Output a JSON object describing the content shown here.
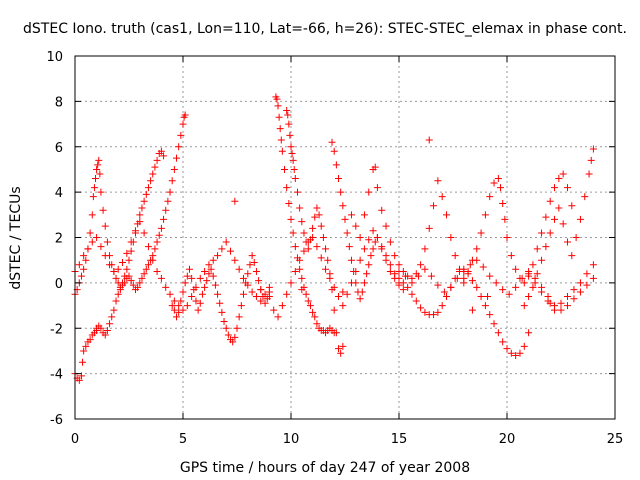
{
  "chart_data": {
    "type": "scatter",
    "title": "dSTEC Iono. truth (cas1, Lon=110, Lat=-66, h=26): STEC-STEC_elemax in phase cont.",
    "xlabel": "GPS time / hours of day 247 of year 2008",
    "ylabel": "dSTEC  / TECUs",
    "xlim": [
      0,
      25
    ],
    "ylim": [
      -6,
      10
    ],
    "x_ticks": [
      0,
      5,
      10,
      15,
      20,
      25
    ],
    "y_ticks": [
      -6,
      -4,
      -2,
      0,
      2,
      4,
      6,
      8,
      10
    ],
    "x_tick_labels": [
      "0",
      "5",
      "10",
      "15",
      "20",
      "25"
    ],
    "y_tick_labels": [
      "-6",
      "-4",
      "-2",
      "0",
      "2",
      "4",
      "6",
      "8",
      "10"
    ],
    "grid": true,
    "marker": "plus",
    "series_color": "#ff0000",
    "series": [
      {
        "x": [
          0.0,
          0.1,
          0.2,
          0.3,
          0.35,
          0.4,
          0.5,
          0.6,
          0.7,
          0.8,
          0.9,
          1.0,
          1.0,
          1.1,
          1.2,
          1.3,
          1.4,
          1.5,
          1.6,
          1.7,
          1.8,
          1.9,
          2.0,
          2.1,
          2.2,
          2.3,
          2.4,
          2.5,
          2.6,
          2.7,
          2.8,
          2.9,
          3.0,
          3.1,
          3.2,
          3.3,
          3.4,
          3.5,
          3.6,
          3.7,
          3.8,
          3.9,
          4.0,
          4.1,
          4.2,
          4.3,
          4.4,
          4.5,
          4.6,
          4.7,
          4.8,
          4.9,
          5.0,
          5.05,
          5.1
        ],
        "y": [
          -4.0,
          -4.2,
          -4.3,
          -4.1,
          -3.5,
          -3.0,
          -2.8,
          -2.6,
          -2.5,
          -2.3,
          -2.2,
          -2.1,
          -2.0,
          -1.9,
          -2.0,
          -2.2,
          -2.3,
          -2.1,
          -1.8,
          -1.5,
          -1.2,
          -0.8,
          -0.5,
          -0.3,
          -0.1,
          0.0,
          0.2,
          0.3,
          0.1,
          -0.1,
          -0.3,
          -0.2,
          0.0,
          0.2,
          0.4,
          0.6,
          0.8,
          1.0,
          1.2,
          1.5,
          1.8,
          2.1,
          2.4,
          2.8,
          3.2,
          3.6,
          4.0,
          4.5,
          5.0,
          5.5,
          6.0,
          6.5,
          7.0,
          7.3,
          7.4
        ]
      },
      {
        "x": [
          0.0,
          0.1,
          0.2,
          0.3,
          0.4,
          0.5,
          0.6,
          0.7,
          0.8,
          0.85,
          0.9,
          0.95,
          1.0,
          1.05,
          1.1,
          1.15,
          1.2,
          1.3,
          1.4,
          1.5,
          1.6,
          1.7,
          1.8,
          1.9,
          2.0,
          2.1,
          2.2,
          2.3,
          2.4,
          2.5,
          2.6,
          2.7,
          2.8,
          2.9,
          3.0,
          3.1,
          3.2,
          3.3,
          3.4,
          3.5,
          3.6,
          3.7,
          3.8,
          3.9,
          4.0,
          4.1
        ],
        "y": [
          -0.5,
          -0.3,
          0.0,
          0.3,
          0.6,
          1.0,
          1.5,
          2.2,
          3.0,
          3.8,
          4.2,
          4.6,
          5.0,
          5.2,
          5.4,
          4.8,
          4.0,
          3.2,
          2.5,
          1.8,
          1.2,
          0.8,
          0.5,
          0.2,
          0.0,
          -0.2,
          0.0,
          0.3,
          0.6,
          1.0,
          1.4,
          1.8,
          2.2,
          2.6,
          3.0,
          3.3,
          3.6,
          3.9,
          4.2,
          4.5,
          4.8,
          5.1,
          5.4,
          5.7,
          5.8,
          5.6
        ]
      },
      {
        "x": [
          0.0,
          0.2,
          0.4,
          0.6,
          0.8,
          1.0,
          1.2,
          1.4,
          1.6,
          1.8,
          2.0,
          2.2,
          2.4,
          2.6,
          2.8,
          3.0,
          3.2,
          3.4,
          3.6,
          3.8,
          4.0,
          4.2,
          4.4,
          4.6,
          4.8,
          5.0,
          5.2,
          5.4,
          5.6,
          5.8,
          6.0,
          6.2,
          6.4,
          6.6,
          6.8,
          7.0,
          7.2,
          7.4,
          7.6,
          7.8,
          8.0,
          8.2,
          8.4,
          8.6,
          8.8,
          9.0
        ],
        "y": [
          0.5,
          0.8,
          1.2,
          1.5,
          1.8,
          2.0,
          1.6,
          1.2,
          0.8,
          0.5,
          0.6,
          0.9,
          1.3,
          1.8,
          2.3,
          2.7,
          2.2,
          1.6,
          1.0,
          0.5,
          0.2,
          -0.2,
          -0.5,
          -0.8,
          -1.0,
          -1.2,
          -1.0,
          -0.6,
          -0.2,
          0.2,
          0.5,
          0.8,
          1.0,
          1.2,
          1.5,
          1.8,
          1.4,
          1.0,
          0.6,
          0.2,
          -0.1,
          -0.4,
          -0.6,
          -0.8,
          -0.5,
          -0.2
        ]
      },
      {
        "x": [
          4.5,
          4.6,
          4.7,
          4.8,
          4.9,
          5.0,
          5.1,
          5.2,
          5.3,
          5.4,
          5.5,
          5.6,
          5.7,
          5.8,
          5.9,
          6.0,
          6.1,
          6.2,
          6.3,
          6.4,
          6.5,
          6.6,
          6.7,
          6.8,
          6.9,
          7.0,
          7.1,
          7.2,
          7.3,
          7.4,
          7.5,
          7.6,
          7.7,
          7.8,
          7.9,
          8.0,
          8.1,
          8.2,
          8.3,
          8.4,
          8.5,
          8.6,
          8.7,
          8.8,
          8.9,
          9.0
        ],
        "y": [
          -1.0,
          -1.2,
          -1.5,
          -1.3,
          -0.8,
          -0.4,
          0.0,
          0.3,
          0.6,
          0.2,
          -0.3,
          -0.8,
          -1.2,
          -0.9,
          -0.5,
          -0.2,
          0.1,
          0.4,
          0.6,
          0.3,
          -0.1,
          -0.5,
          -0.9,
          -1.3,
          -1.7,
          -2.0,
          -2.3,
          -2.5,
          -2.6,
          -2.4,
          -2.0,
          -1.5,
          -1.0,
          -0.5,
          0.0,
          0.4,
          0.8,
          1.2,
          0.9,
          0.5,
          0.1,
          -0.3,
          -0.6,
          -0.9,
          -0.7,
          -0.4
        ]
      },
      {
        "x": [
          9.3,
          9.35,
          9.4,
          9.45,
          9.5,
          9.55,
          9.6,
          9.7,
          9.8,
          9.9,
          10.0,
          10.1,
          10.2,
          10.3,
          10.4,
          10.5,
          10.6,
          10.7,
          10.8,
          10.9,
          11.0,
          11.1,
          11.2,
          11.3,
          11.4,
          11.5,
          11.6,
          11.7,
          11.8,
          11.9,
          12.0
        ],
        "y": [
          8.2,
          8.1,
          7.8,
          7.3,
          6.8,
          6.3,
          5.8,
          5.0,
          4.2,
          3.5,
          2.8,
          2.2,
          1.6,
          1.1,
          0.6,
          0.2,
          -0.2,
          -0.5,
          -0.8,
          -1.0,
          -1.3,
          -1.5,
          -1.8,
          -2.0,
          -2.1,
          -2.1,
          -2.2,
          -2.1,
          -2.0,
          -2.1,
          -2.2
        ]
      },
      {
        "x": [
          9.8,
          9.85,
          9.9,
          9.95,
          10.0,
          10.05,
          10.1,
          10.15,
          10.2,
          10.3,
          10.4,
          10.5,
          10.6,
          10.7,
          10.8,
          10.9,
          11.0,
          11.1,
          11.2,
          11.3,
          11.4,
          11.5,
          11.6,
          11.7,
          11.8,
          11.9,
          12.0,
          12.1,
          12.2,
          12.3,
          12.4
        ],
        "y": [
          7.6,
          7.4,
          7.0,
          6.5,
          6.0,
          5.7,
          5.4,
          5.0,
          4.6,
          4.0,
          3.3,
          2.7,
          2.2,
          1.8,
          1.5,
          1.9,
          2.4,
          2.9,
          3.3,
          3.0,
          2.5,
          2.0,
          1.5,
          1.0,
          0.4,
          -0.3,
          -1.2,
          -2.2,
          -2.9,
          -3.1,
          -2.8
        ]
      },
      {
        "x": [
          9.0,
          9.2,
          9.4,
          9.6,
          9.8,
          10.0,
          10.2,
          10.4,
          10.6,
          10.8,
          11.0,
          11.2,
          11.4,
          11.6,
          11.8,
          12.0,
          12.2,
          12.4,
          12.6,
          12.8,
          13.0,
          13.2,
          13.4,
          13.6,
          13.8,
          14.0,
          14.2,
          14.4,
          14.6,
          14.8,
          15.0
        ],
        "y": [
          -0.6,
          -1.2,
          -1.5,
          -1.0,
          -0.5,
          0.0,
          0.5,
          1.0,
          1.4,
          1.8,
          2.0,
          1.6,
          1.1,
          0.6,
          0.2,
          -0.2,
          -0.6,
          -1.0,
          -0.5,
          0.0,
          0.5,
          1.0,
          1.5,
          1.9,
          2.3,
          2.0,
          1.5,
          1.0,
          0.5,
          0.2,
          -0.1
        ]
      },
      {
        "x": [
          11.9,
          12.0,
          12.1,
          12.2,
          12.3,
          12.4,
          12.5,
          12.6,
          12.7,
          12.8,
          12.9,
          13.0,
          13.1,
          13.2,
          13.3,
          13.4,
          13.5,
          13.6,
          13.7,
          13.8,
          13.9,
          14.0,
          14.2,
          14.4,
          14.6,
          14.8,
          15.0,
          15.2
        ],
        "y": [
          6.2,
          5.8,
          5.2,
          4.6,
          4.0,
          3.4,
          2.8,
          2.2,
          1.6,
          1.0,
          0.5,
          0.0,
          -0.4,
          -0.7,
          -0.4,
          0.0,
          0.4,
          0.8,
          1.2,
          1.5,
          1.8,
          2.0,
          1.6,
          1.2,
          0.8,
          0.4,
          0.0,
          -0.3
        ]
      },
      {
        "x": [
          12.8,
          13.0,
          13.2,
          13.4,
          13.6,
          13.8,
          14.0,
          14.2,
          14.4,
          14.6,
          14.8,
          15.0,
          15.2,
          15.4,
          15.6,
          15.8,
          16.0,
          16.2,
          16.4,
          16.6,
          16.8,
          17.0,
          17.2,
          17.4,
          17.6,
          17.8,
          18.0
        ],
        "y": [
          3.0,
          2.5,
          2.0,
          3.0,
          4.0,
          5.0,
          4.2,
          3.2,
          2.5,
          1.8,
          1.2,
          0.8,
          0.5,
          0.3,
          0.2,
          0.4,
          0.8,
          1.5,
          2.4,
          3.4,
          4.5,
          3.8,
          3.0,
          2.0,
          1.2,
          0.6,
          0.2
        ]
      },
      {
        "x": [
          15.0,
          15.2,
          15.4,
          15.6,
          15.8,
          16.0,
          16.2,
          16.4,
          16.6,
          16.8,
          17.0,
          17.2,
          17.4,
          17.6,
          17.8,
          18.0,
          18.2,
          18.4,
          18.6,
          18.8,
          19.0,
          19.2,
          19.4,
          19.6,
          19.8,
          20.0,
          20.2,
          20.4,
          20.6,
          20.8,
          21.0
        ],
        "y": [
          0.2,
          0.0,
          -0.2,
          -0.5,
          -0.8,
          -1.1,
          -1.3,
          -1.4,
          -1.4,
          -1.3,
          -1.0,
          -0.6,
          -0.2,
          0.2,
          0.5,
          0.6,
          0.4,
          0.1,
          -0.2,
          -0.6,
          -1.0,
          -1.4,
          -1.8,
          -2.2,
          -2.6,
          -2.9,
          -3.1,
          -3.2,
          -3.1,
          -2.8,
          -2.2
        ]
      },
      {
        "x": [
          15.0,
          15.3,
          15.6,
          15.9,
          16.2,
          16.5,
          16.8,
          17.1,
          17.4,
          17.7,
          18.0,
          18.3,
          18.6,
          18.9,
          19.2,
          19.5,
          19.8,
          20.1,
          20.4,
          20.7,
          21.0,
          21.3,
          21.6,
          21.9,
          22.2,
          22.5,
          22.8,
          23.1,
          23.4,
          23.7,
          24.0
        ],
        "y": [
          0.5,
          0.3,
          0.0,
          0.3,
          0.6,
          0.3,
          -0.1,
          -0.4,
          -0.2,
          0.2,
          0.5,
          0.8,
          1.0,
          0.7,
          0.3,
          0.0,
          -0.3,
          -0.5,
          -0.2,
          0.2,
          0.5,
          0.2,
          -0.2,
          -0.6,
          -1.0,
          -1.2,
          -1.0,
          -0.7,
          -0.4,
          -0.1,
          0.2
        ]
      },
      {
        "x": [
          18.0,
          18.2,
          18.4,
          18.6,
          18.8,
          19.0,
          19.2,
          19.4,
          19.6,
          19.7,
          19.8,
          19.9,
          20.0,
          20.2,
          20.4,
          20.6,
          20.8,
          21.0,
          21.2,
          21.4,
          21.6,
          21.8,
          22.0,
          22.2,
          22.4,
          22.6,
          22.8,
          23.0
        ],
        "y": [
          0.0,
          0.5,
          1.0,
          1.5,
          2.2,
          3.0,
          3.8,
          4.4,
          4.6,
          4.2,
          3.5,
          2.8,
          2.0,
          1.2,
          0.6,
          0.2,
          0.0,
          0.3,
          0.8,
          1.5,
          2.2,
          2.9,
          3.6,
          4.2,
          4.6,
          4.8,
          4.2,
          3.4
        ]
      },
      {
        "x": [
          20.8,
          21.0,
          21.2,
          21.4,
          21.6,
          21.8,
          22.0,
          22.2,
          22.4,
          22.6,
          22.8,
          23.0,
          23.2,
          23.4,
          23.6,
          23.8,
          23.9,
          24.0
        ],
        "y": [
          -1.0,
          -0.6,
          -0.2,
          0.4,
          1.0,
          1.6,
          2.2,
          2.8,
          3.3,
          2.6,
          1.8,
          1.2,
          2.0,
          2.8,
          3.8,
          4.8,
          5.4,
          5.9
        ]
      },
      {
        "x": [
          21.0,
          21.3,
          21.6,
          21.9,
          22.2,
          22.5,
          22.8,
          23.1,
          23.4,
          23.7,
          24.0
        ],
        "y": [
          0.4,
          0.0,
          -0.4,
          -0.8,
          -1.2,
          -0.9,
          -0.6,
          -0.3,
          0.0,
          0.4,
          0.8
        ]
      },
      {
        "x": [
          7.4,
          8.6,
          10.5,
          12.4,
          13.9,
          16.4,
          18.4,
          19.1,
          22.0
        ],
        "y": [
          3.6,
          -0.3,
          -0.3,
          -0.4,
          5.1,
          6.3,
          -1.2,
          -0.6,
          -0.9
        ]
      }
    ]
  }
}
